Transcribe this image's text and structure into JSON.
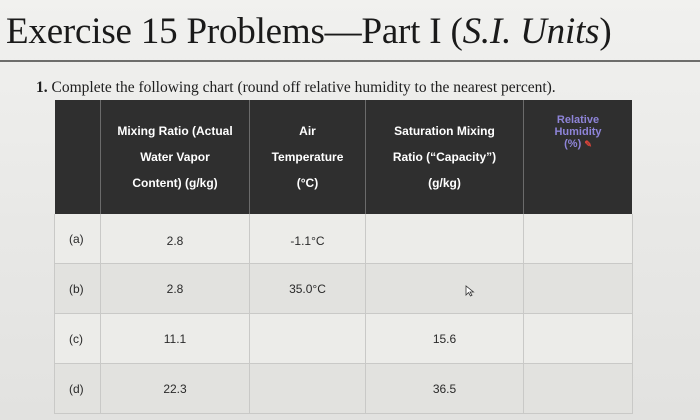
{
  "title": {
    "main": "Exercise 15 Problems—Part I (",
    "italic": "S.I. Units",
    "end": ")"
  },
  "question": {
    "number": "1.",
    "text": "Complete the following chart (round off relative humidity to the nearest percent)."
  },
  "table": {
    "headers": {
      "mixing_ratio": [
        "Mixing Ratio (Actual",
        "Water Vapor",
        "Content) (g/kg)"
      ],
      "air_temperature": [
        "Air",
        "Temperature",
        "(°C)"
      ],
      "saturation": [
        "Saturation Mixing",
        "Ratio (“Capacity”)",
        "(g/kg)"
      ],
      "relative_humidity": [
        "Relative",
        "Humidity",
        "(%)"
      ]
    },
    "rows": [
      {
        "label": "(a)",
        "mixing_ratio": "2.8",
        "air_temperature": "-1.1°C",
        "saturation": "",
        "relative_humidity": ""
      },
      {
        "label": "(b)",
        "mixing_ratio": "2.8",
        "air_temperature": "35.0°C",
        "saturation": "",
        "relative_humidity": ""
      },
      {
        "label": "(c)",
        "mixing_ratio": "11.1",
        "air_temperature": "",
        "saturation": "15.6",
        "relative_humidity": ""
      },
      {
        "label": "(d)",
        "mixing_ratio": "22.3",
        "air_temperature": "",
        "saturation": "36.5",
        "relative_humidity": ""
      }
    ]
  }
}
